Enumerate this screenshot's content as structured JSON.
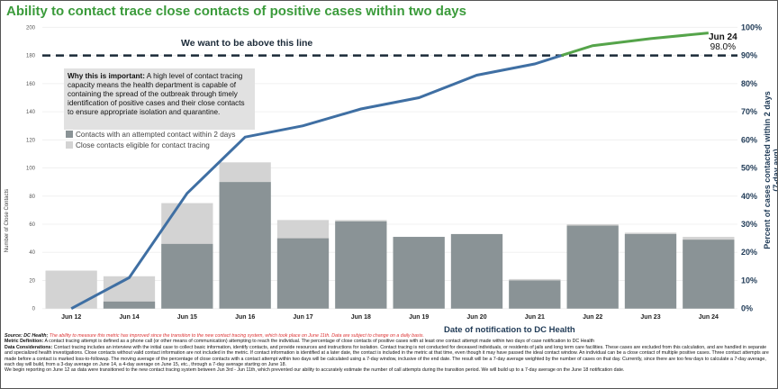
{
  "title": "Ability to contact trace close contacts of positive cases within two days",
  "info_box": {
    "heading": "Why this is important:",
    "text": "A high level of contact tracing capacity means the health department is capable of containing the spread of the outbreak through timely identification of positive cases and their close contacts to ensure appropriate isolation and quarantine."
  },
  "target_label": "We want to be above this line",
  "end_label": {
    "date": "Jun 24",
    "value": "98.0%"
  },
  "footer": {
    "source_label": "Source: DC Health;",
    "source_note": "The ability to measure this metric has improved since the transition to the new contact tracing system, which took place on June 11th. Data are subject to change on a daily basis.",
    "metric_label": "Metric Definition:",
    "metric_text": "A contact tracing attempt is defined as a phone call (or other means of communication) attempting to reach the individual. The percentage of close contacts of positive cases with at least one contact attempt made within two days of case notification to DC Health",
    "data_label": "Data Considerations:",
    "data_text": "Contact tracing includes an interview with the initial case to collect basic information, identify contacts, and provide resources and instructions for isolation. Contact tracing is not conducted for deceased individuals, or residents of jails and long term care facilities. These cases are excluded from this calculation, and are handled in separate and specialized health investigations. Close contacts without valid contact information are not included in the metric. If contact information is identified at a later date, the contact is included in the metric at that time, even though it may have passed the ideal contact window. An individual can be a close contact of multiple positive cases. Three contact attempts are made before a contact is marked loss-to-followup. The moving average of the percentage of close contacts with a contact attempt within two days will be calculated using a 7-day window, inclusive of the end date. The result will be a 7-day average weighted by the number of cases on that day. Currently, since there are too few days to calculate a 7-day average, each day will build, from a 3-day average on June 14, a 4-day average on June 15, etc., through a 7-day average starting on June 18.",
    "last_line": "We begin reporting on June 12 as data were transitioned to the new contact tracing system between Jun 3rd - Jun 11th, which prevented our ability to accurately estimate the number of call attempts during the transition period. We will build up to a 7-day average on the June 18 notification date."
  },
  "chart_data": {
    "type": "bar",
    "title": "Ability to contact trace close contacts of positive cases within two days",
    "xlabel": "Date of notification to DC Health",
    "ylabel": "Number of Close Contacts",
    "ylabel_right": "Percent of cases contacted within 2 days (7-day avg)",
    "ylim": [
      0,
      200
    ],
    "ylim_right": [
      0,
      100
    ],
    "yticks": [
      0,
      20,
      40,
      60,
      80,
      100,
      120,
      140,
      160,
      180,
      200
    ],
    "yticks_right": [
      "0%",
      "10%",
      "20%",
      "30%",
      "40%",
      "50%",
      "60%",
      "70%",
      "80%",
      "90%",
      "100%"
    ],
    "grid": true,
    "legend_position": "top-left",
    "categories": [
      "Jun 12",
      "Jun 14",
      "Jun 15",
      "Jun 16",
      "Jun 17",
      "Jun 18",
      "Jun 19",
      "Jun 20",
      "Jun 21",
      "Jun 22",
      "Jun 23",
      "Jun 24"
    ],
    "series": [
      {
        "name": "Contacts with an attempted contact within 2 days",
        "type": "bar",
        "color": "#8a9396",
        "values": [
          0,
          5,
          46,
          90,
          50,
          62,
          51,
          53,
          20,
          59,
          53,
          49
        ]
      },
      {
        "name": "Close contacts eligible for contact tracing",
        "type": "bar",
        "color": "#d3d3d3",
        "values": [
          27,
          23,
          75,
          104,
          63,
          63,
          51,
          53,
          21,
          60,
          54,
          51
        ]
      },
      {
        "type": "line",
        "axis": "right",
        "color": "#3f6fa3",
        "color_above_target": "#55a44a",
        "values": [
          0,
          11,
          41,
          61,
          65,
          71,
          75,
          83,
          87,
          93.5,
          96,
          98
        ]
      }
    ],
    "target_line": {
      "value_right": 90,
      "label": "We want to be above this line",
      "color": "#1b2a38"
    }
  }
}
